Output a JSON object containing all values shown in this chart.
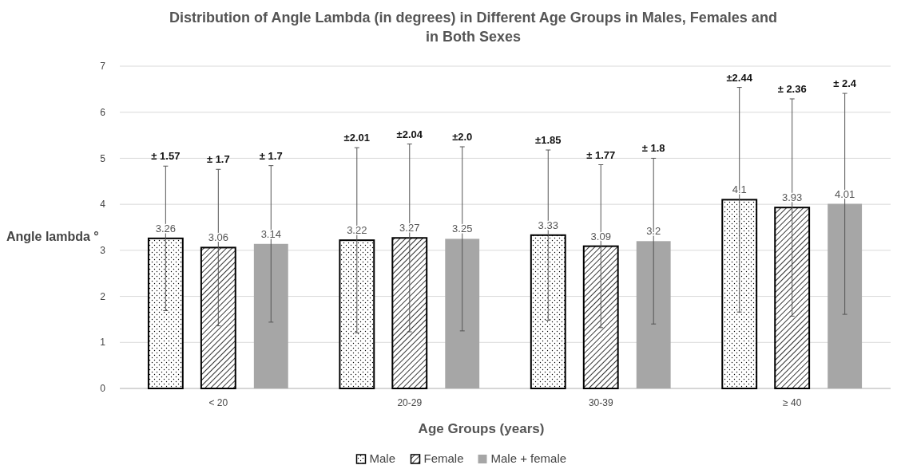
{
  "chart_data": {
    "type": "bar",
    "title": "Distribution of Angle Lambda (in degrees) in Different Age Groups in Males, Females and in Both Sexes",
    "xlabel": "Age Groups (years)",
    "ylabel": "Angle lambda °",
    "categories": [
      "< 20",
      "20-29",
      "30-39",
      "≥ 40"
    ],
    "series": [
      {
        "name": "Male",
        "color": "#000000",
        "values": [
          3.26,
          3.22,
          3.33,
          4.1
        ],
        "errors": [
          1.57,
          2.01,
          1.85,
          2.44
        ]
      },
      {
        "name": "Female",
        "color": "#000000",
        "values": [
          3.06,
          3.27,
          3.09,
          3.93
        ],
        "errors": [
          1.7,
          2.04,
          1.77,
          2.36
        ]
      },
      {
        "name": "Male + female",
        "color": "#a6a6a6",
        "values": [
          3.14,
          3.25,
          3.2,
          4.01
        ],
        "errors": [
          1.7,
          2.0,
          1.8,
          2.4
        ]
      }
    ],
    "annotations": [
      "± 1.57",
      "± 1.7",
      "± 1.7",
      "±2.01",
      "±2.04",
      "±2.0",
      "±1.85",
      "± 1.77",
      "± 1.8",
      "±2.44",
      "± 2.36",
      "± 2.4"
    ],
    "ylim": [
      0,
      7
    ],
    "yticks": [
      0,
      1,
      2,
      3,
      4,
      5,
      6,
      7
    ],
    "grid": "y",
    "legend": "bottom",
    "data_labels": true
  }
}
